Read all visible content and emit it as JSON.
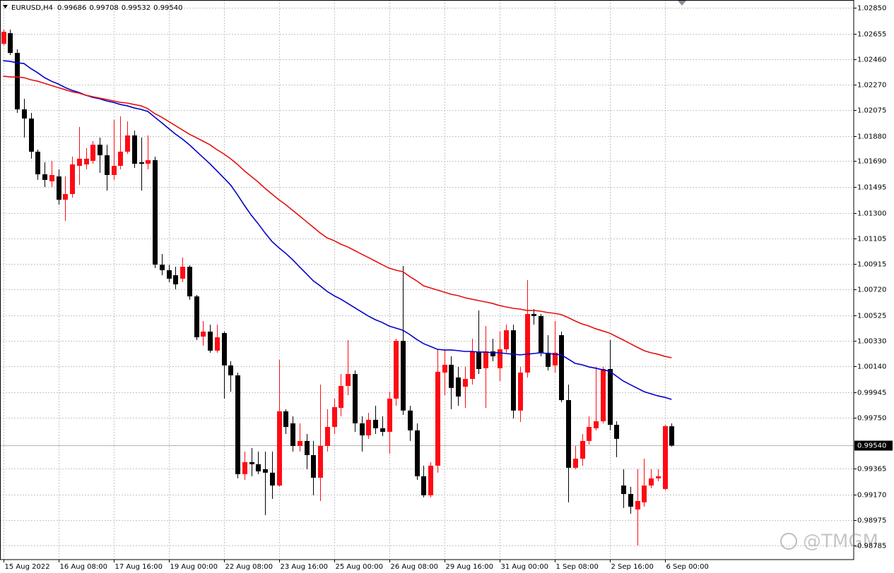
{
  "chart_data": {
    "type": "candlestick",
    "title": "EURUSD,H4",
    "categories": [
      "15 Aug 2022",
      null,
      null,
      null,
      null,
      null,
      null,
      null,
      "16 Aug 08:00",
      null,
      null,
      null,
      null,
      null,
      null,
      null,
      "17 Aug 16:00",
      null,
      null,
      null,
      null,
      null,
      null,
      null,
      "19 Aug 00:00",
      null,
      null,
      null,
      null,
      null,
      null,
      null,
      "22 Aug 08:00",
      null,
      null,
      null,
      null,
      null,
      null,
      null,
      "23 Aug 16:00",
      null,
      null,
      null,
      null,
      null,
      null,
      null,
      "25 Aug 00:00",
      null,
      null,
      null,
      null,
      null,
      null,
      null,
      "26 Aug 08:00",
      null,
      null,
      null,
      null,
      null,
      null,
      null,
      "29 Aug 16:00",
      null,
      null,
      null,
      null,
      null,
      null,
      null,
      "31 Aug 00:00",
      null,
      null,
      null,
      null,
      null,
      null,
      null,
      "1 Sep 08:00",
      null,
      null,
      null,
      null,
      null,
      null,
      null,
      "2 Sep 16:00",
      null,
      null,
      null,
      null,
      null,
      null,
      null,
      "6 Sep 00:00",
      null
    ],
    "open": [
      1.02578,
      1.02658,
      1.02509,
      1.02082,
      1.02013,
      1.01762,
      1.01591,
      1.01538,
      1.01575,
      1.01399,
      1.01442,
      1.01655,
      1.01666,
      1.01693,
      1.01815,
      1.01735,
      1.01586,
      1.01655,
      1.01762,
      1.01885,
      1.01682,
      1.01671,
      1.01698,
      1.00908,
      1.00866,
      1.00828,
      1.00802,
      1.00892,
      1.00668,
      1.00364,
      1.00402,
      1.00258,
      1.00391,
      1.00146,
      1.00071,
      0.99324,
      0.99415,
      0.99399,
      0.99361,
      0.99335,
      0.99238,
      0.99799,
      0.99708,
      0.99537,
      0.99575,
      0.99468,
      0.99297,
      0.99537,
      0.99681,
      0.99825,
      0.99991,
      1.00081,
      0.99708,
      0.99617,
      0.99735,
      0.99671,
      0.99644,
      0.99895,
      1.00332,
      0.99805,
      0.99655,
      0.99308,
      0.99164,
      0.99388,
      1.00092,
      1.00151,
      1.00055,
      0.99985,
      1.00044,
      1.00252,
      1.00125,
      1.00252,
      1.00125,
      1.00268,
      1.00412,
      0.99805,
      1.00092,
      1.00535,
      1.00519,
      1.00242,
      1.00146,
      1.00375,
      0.99884,
      0.99372,
      0.99441,
      0.99575,
      0.99671,
      0.99724,
      1.00119,
      0.99697,
      0.99238,
      0.99174,
      0.99057,
      0.99111,
      0.99238,
      0.99292,
      0.99212,
      0.99686
    ],
    "high": [
      1.02685,
      1.02685,
      1.02536,
      1.02162,
      1.02055,
      1.01778,
      1.01682,
      1.01693,
      1.01629,
      1.01575,
      1.01725,
      1.01949,
      1.01789,
      1.01842,
      1.01869,
      1.01815,
      1.02002,
      1.02029,
      1.01991,
      1.01922,
      1.01869,
      1.01885,
      1.01725,
      1.00988,
      1.00908,
      1.00892,
      1.00962,
      1.00903,
      1.00679,
      1.00482,
      1.00455,
      1.00455,
      1.00402,
      1.00178,
      1.00092,
      0.99495,
      0.99521,
      0.99495,
      0.99495,
      0.99495,
      1.00188,
      0.99815,
      0.99761,
      0.99708,
      0.99628,
      0.99575,
      1.00001,
      0.99815,
      0.99895,
      1.00081,
      1.00338,
      1.00108,
      0.99761,
      0.99788,
      0.99841,
      0.99761,
      0.99948,
      1.00348,
      1.00898,
      0.99841,
      0.99708,
      0.99388,
      0.99415,
      1.00268,
      1.00268,
      1.00215,
      1.00135,
      1.00135,
      1.00348,
      1.00562,
      1.00444,
      1.00348,
      1.00402,
      1.00455,
      1.00455,
      1.00135,
      1.00791,
      1.00572,
      1.00535,
      1.00375,
      1.00482,
      1.00402,
      1.00001,
      0.99537,
      0.99628,
      0.99761,
      1.00135,
      1.00135,
      1.00338,
      0.99724,
      0.99361,
      0.99228,
      0.99361,
      0.99441,
      0.99361,
      0.99361,
      0.99697,
      0.99708
    ],
    "low": [
      1.02568,
      1.02493,
      1.02055,
      1.01869,
      1.01709,
      1.01549,
      1.01495,
      1.01495,
      1.01362,
      1.01239,
      1.01415,
      1.01511,
      1.01629,
      1.01671,
      1.01602,
      1.01468,
      1.01549,
      1.01629,
      1.01746,
      1.01639,
      1.01468,
      1.01629,
      1.00882,
      1.00828,
      1.00775,
      1.00722,
      1.00775,
      1.00642,
      1.00338,
      1.00295,
      1.00242,
      1.00242,
      0.99895,
      0.99948,
      0.99292,
      0.99281,
      0.99308,
      0.99324,
      0.99014,
      0.99137,
      0.99228,
      0.99628,
      0.99495,
      0.99495,
      0.99361,
      0.99164,
      0.99121,
      0.99495,
      0.99628,
      0.99761,
      0.99921,
      0.99644,
      0.99495,
      0.99591,
      0.99628,
      0.99612,
      0.99479,
      0.99841,
      0.99772,
      0.99575,
      0.99281,
      0.99148,
      0.99148,
      0.99335,
      0.99921,
      0.99815,
      0.99841,
      0.99825,
      1.00001,
      1.00081,
      0.99825,
      1.00178,
      1.00028,
      1.00242,
      0.99745,
      0.99719,
      1.00055,
      1.00455,
      1.00215,
      1.00108,
      1.00092,
      0.99868,
      0.99111,
      0.99361,
      0.99388,
      0.99548,
      0.99655,
      0.99708,
      0.99655,
      0.99452,
      0.99068,
      0.99025,
      0.98785,
      0.99078,
      0.99217,
      0.99271,
      0.99201,
      0.99532
    ],
    "close": [
      1.02669,
      1.02509,
      1.02082,
      1.02013,
      1.01762,
      1.01591,
      1.01549,
      1.01586,
      1.01399,
      1.01442,
      1.01666,
      1.01709,
      1.01709,
      1.01815,
      1.01735,
      1.01586,
      1.01655,
      1.01762,
      1.01885,
      1.01671,
      1.01671,
      1.01698,
      1.00908,
      1.00866,
      1.00802,
      1.00759,
      1.00892,
      1.00668,
      1.00359,
      1.00402,
      1.00258,
      1.00359,
      1.00146,
      1.00071,
      0.99324,
      0.99415,
      0.99399,
      0.99345,
      0.99335,
      0.99238,
      0.99799,
      0.99681,
      0.99537,
      0.99575,
      0.99468,
      0.99297,
      0.99537,
      0.99681,
      0.99831,
      0.99991,
      1.00081,
      0.99708,
      0.99617,
      0.99735,
      0.99671,
      0.99644,
      0.99895,
      1.00332,
      0.99805,
      0.99655,
      0.99308,
      0.99164,
      0.99388,
      1.00098,
      1.00151,
      0.99976,
      0.99911,
      1.00044,
      1.00252,
      1.00119,
      1.00252,
      1.00215,
      1.00268,
      1.00412,
      0.99805,
      1.00092,
      1.00535,
      1.00519,
      1.00242,
      1.00135,
      1.00242,
      0.99884,
      0.99372,
      0.99441,
      0.99575,
      0.99681,
      0.99724,
      1.00119,
      0.99697,
      0.99591,
      0.99174,
      0.99078,
      0.99121,
      0.99238,
      0.99292,
      0.99308,
      0.99687,
      0.9954
    ],
    "up_color": "#ff0a14",
    "down_color": "#000000",
    "lines": [
      {
        "color": "#0000c8",
        "values": [
          1.0245,
          1.02445,
          1.02434,
          1.02429,
          1.02391,
          1.02359,
          1.02322,
          1.02295,
          1.02274,
          1.02247,
          1.02226,
          1.0221,
          1.02189,
          1.02173,
          1.02162,
          1.02146,
          1.02135,
          1.02119,
          1.02109,
          1.02093,
          1.02082,
          1.02066,
          1.02023,
          1.01981,
          1.01938,
          1.01895,
          1.01858,
          1.01815,
          1.01767,
          1.01719,
          1.01671,
          1.01618,
          1.01565,
          1.01511,
          1.01437,
          1.01357,
          1.01282,
          1.01218,
          1.01148,
          1.01084,
          1.01036,
          1.00994,
          1.00946,
          1.00892,
          1.00839,
          1.00786,
          1.00748,
          1.00706,
          1.00674,
          1.00647,
          1.00615,
          1.00583,
          1.00551,
          1.00519,
          1.00492,
          1.00471,
          1.00444,
          1.00428,
          1.00412,
          1.0038,
          1.00343,
          1.00311,
          1.0029,
          1.00268,
          1.00263,
          1.00263,
          1.00258,
          1.00252,
          1.00252,
          1.00247,
          1.00247,
          1.00242,
          1.00242,
          1.00236,
          1.00231,
          1.00226,
          1.00231,
          1.00236,
          1.00242,
          1.00236,
          1.00231,
          1.00226,
          1.00194,
          1.00162,
          1.00151,
          1.00135,
          1.00125,
          1.00113,
          1.00103,
          1.00065,
          1.00028,
          1.00001,
          0.99975,
          0.99948,
          0.99932,
          0.99916,
          0.99905,
          0.99889
        ]
      },
      {
        "color": "#e51010",
        "values": [
          1.02333,
          1.02327,
          1.02327,
          1.02322,
          1.02306,
          1.02295,
          1.02279,
          1.02263,
          1.02247,
          1.02231,
          1.02215,
          1.02205,
          1.02189,
          1.02178,
          1.02167,
          1.02157,
          1.02146,
          1.02135,
          1.0213,
          1.02119,
          1.02109,
          1.02087,
          1.0205,
          1.02023,
          1.01991,
          1.01959,
          1.01927,
          1.01895,
          1.01869,
          1.01842,
          1.01815,
          1.01778,
          1.01746,
          1.01709,
          1.01666,
          1.01618,
          1.01575,
          1.01533,
          1.01485,
          1.01442,
          1.01399,
          1.01362,
          1.01319,
          1.01277,
          1.01234,
          1.01191,
          1.01148,
          1.01111,
          1.0109,
          1.01063,
          1.01042,
          1.01015,
          1.00988,
          1.00962,
          1.00935,
          1.00908,
          1.00882,
          1.00866,
          1.00855,
          1.00818,
          1.00786,
          1.00748,
          1.00732,
          1.00716,
          1.007,
          1.00684,
          1.00674,
          1.00658,
          1.00647,
          1.00636,
          1.00626,
          1.00615,
          1.00599,
          1.00588,
          1.00578,
          1.00572,
          1.00562,
          1.00562,
          1.00556,
          1.00546,
          1.0054,
          1.0053,
          1.00508,
          1.00482,
          1.0046,
          1.00444,
          1.00423,
          1.00407,
          1.00391,
          1.00364,
          1.00338,
          1.00311,
          1.00284,
          1.00258,
          1.00242,
          1.00231,
          1.00215,
          1.00204
        ]
      }
    ],
    "ylim": [
      0.98678,
      1.02909
    ],
    "yticks": [
      {
        "value": 1.0285,
        "label": "1.02850"
      },
      1.02655,
      {
        "value": 1.0246,
        "label": "1.02460"
      },
      {
        "value": 1.0227,
        "label": "1.02270"
      },
      1.02075,
      {
        "value": 1.0188,
        "label": "1.01880"
      },
      {
        "value": 1.0169,
        "label": "1.01690"
      },
      1.01495,
      {
        "value": 1.013,
        "label": "1.01300"
      },
      1.01105,
      1.00915,
      {
        "value": 1.0072,
        "label": "1.00720"
      },
      1.00525,
      {
        "value": 1.0033,
        "label": "1.00330"
      },
      {
        "value": 1.0014,
        "label": "1.00140"
      },
      0.99945,
      {
        "value": 0.9975,
        "label": "0.99750"
      },
      0.99365,
      {
        "value": 0.9917,
        "label": "0.99170"
      },
      0.98975,
      0.98785
    ],
    "last_price": {
      "value": 0.9954,
      "label": "0.99540"
    },
    "grid": true,
    "watermark": "@TMGM"
  }
}
